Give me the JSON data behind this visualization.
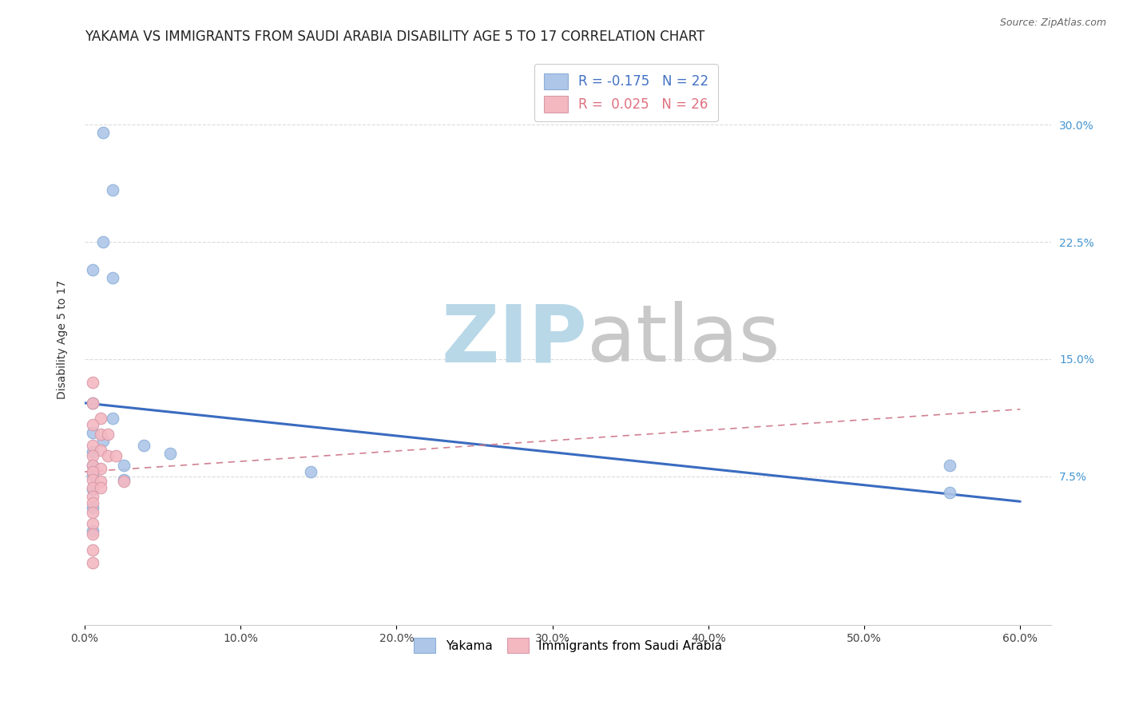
{
  "title": "YAKAMA VS IMMIGRANTS FROM SAUDI ARABIA DISABILITY AGE 5 TO 17 CORRELATION CHART",
  "source": "Source: ZipAtlas.com",
  "ylabel": "Disability Age 5 to 17",
  "ytick_labels": [
    "7.5%",
    "15.0%",
    "22.5%",
    "30.0%"
  ],
  "ytick_values": [
    0.075,
    0.15,
    0.225,
    0.3
  ],
  "xlim": [
    0.0,
    0.62
  ],
  "ylim": [
    -0.02,
    0.345
  ],
  "xtick_vals": [
    0.0,
    0.1,
    0.2,
    0.3,
    0.4,
    0.5,
    0.6
  ],
  "xtick_labels": [
    "0.0%",
    "10.0%",
    "20.0%",
    "30.0%",
    "40.0%",
    "50.0%",
    "60.0%"
  ],
  "legend_r1": "R = -0.175",
  "legend_n1": "N = 22",
  "legend_r2": "R =  0.025",
  "legend_n2": "N = 26",
  "legend_color1": "#aec6e8",
  "legend_color2": "#f4b8c1",
  "yakama_points": [
    [
      0.012,
      0.295
    ],
    [
      0.018,
      0.258
    ],
    [
      0.012,
      0.225
    ],
    [
      0.005,
      0.207
    ],
    [
      0.018,
      0.202
    ],
    [
      0.005,
      0.122
    ],
    [
      0.018,
      0.112
    ],
    [
      0.005,
      0.103
    ],
    [
      0.012,
      0.098
    ],
    [
      0.005,
      0.091
    ],
    [
      0.005,
      0.082
    ],
    [
      0.005,
      0.076
    ],
    [
      0.025,
      0.082
    ],
    [
      0.025,
      0.073
    ],
    [
      0.005,
      0.067
    ],
    [
      0.005,
      0.055
    ],
    [
      0.005,
      0.04
    ],
    [
      0.038,
      0.095
    ],
    [
      0.055,
      0.09
    ],
    [
      0.145,
      0.078
    ],
    [
      0.555,
      0.082
    ],
    [
      0.555,
      0.065
    ]
  ],
  "saudi_points": [
    [
      0.005,
      0.135
    ],
    [
      0.005,
      0.122
    ],
    [
      0.01,
      0.112
    ],
    [
      0.005,
      0.108
    ],
    [
      0.01,
      0.102
    ],
    [
      0.015,
      0.102
    ],
    [
      0.005,
      0.095
    ],
    [
      0.01,
      0.092
    ],
    [
      0.005,
      0.088
    ],
    [
      0.015,
      0.088
    ],
    [
      0.02,
      0.088
    ],
    [
      0.005,
      0.082
    ],
    [
      0.01,
      0.08
    ],
    [
      0.005,
      0.078
    ],
    [
      0.005,
      0.073
    ],
    [
      0.01,
      0.072
    ],
    [
      0.025,
      0.072
    ],
    [
      0.005,
      0.068
    ],
    [
      0.005,
      0.062
    ],
    [
      0.01,
      0.068
    ],
    [
      0.005,
      0.058
    ],
    [
      0.005,
      0.052
    ],
    [
      0.005,
      0.045
    ],
    [
      0.005,
      0.038
    ],
    [
      0.005,
      0.028
    ],
    [
      0.005,
      0.02
    ]
  ],
  "yakama_line": [
    0.0,
    0.122,
    0.6,
    0.059
  ],
  "saudi_line": [
    0.0,
    0.078,
    0.6,
    0.118
  ],
  "yakama_line_color": "#3a6bbf",
  "saudi_line_color": "#d08090",
  "background_color": "#ffffff",
  "grid_color": "#cccccc",
  "watermark_zip": "ZIP",
  "watermark_atlas": "atlas",
  "watermark_color_zip": "#b8d8e8",
  "watermark_color_atlas": "#c8c8c8",
  "title_fontsize": 12,
  "axis_label_fontsize": 10,
  "tick_fontsize": 10,
  "right_tick_color": "#4495d0",
  "bottom_legend_labels": [
    "Yakama",
    "Immigrants from Saudi Arabia"
  ]
}
